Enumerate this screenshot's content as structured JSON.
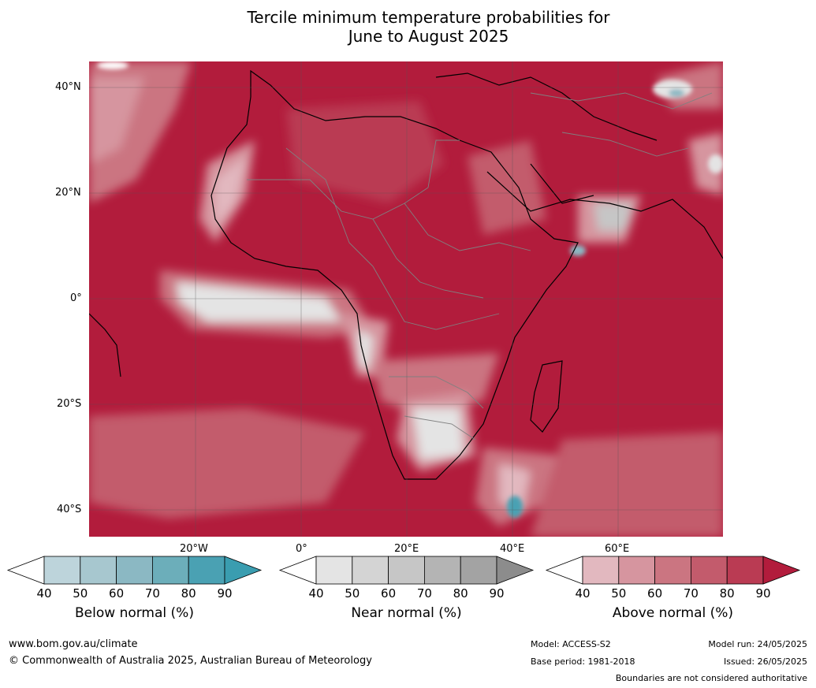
{
  "title_line1": "Tercile minimum temperature probabilities for",
  "title_line2": "June to August 2025",
  "lat_labels": [
    "40°N",
    "20°N",
    "0°",
    "20°S",
    "40°S"
  ],
  "lon_labels": [
    "20°W",
    "0°",
    "20°E",
    "40°E",
    "60°E"
  ],
  "legends": [
    {
      "title": "Below normal (%)",
      "ticks": [
        "40",
        "50",
        "60",
        "70",
        "80",
        "90"
      ],
      "colors": [
        "#ffffff",
        "#bdd4db",
        "#a7c7cf",
        "#8bb8c3",
        "#6caeba",
        "#4aa1b3",
        "#3a9db0"
      ]
    },
    {
      "title": "Near normal (%)",
      "ticks": [
        "40",
        "50",
        "60",
        "70",
        "80",
        "90"
      ],
      "colors": [
        "#ffffff",
        "#e4e4e4",
        "#d4d4d4",
        "#c6c6c6",
        "#b4b4b4",
        "#a3a3a3",
        "#8c8c8c"
      ]
    },
    {
      "title": "Above normal (%)",
      "ticks": [
        "40",
        "50",
        "60",
        "70",
        "80",
        "90"
      ],
      "colors": [
        "#ffffff",
        "#e2b8bf",
        "#d6959f",
        "#cb7581",
        "#c35b6c",
        "#ba3b53",
        "#b21c3c"
      ]
    }
  ],
  "footer": {
    "url": "www.bom.gov.au/climate",
    "copyright": "© Commonwealth of Australia 2025, Australian Bureau of Meteorology",
    "model": "Model: ACCESS-S2",
    "base_period": "Base period: 1981-2018",
    "model_run": "Model run: 24/05/2025",
    "issued": "Issued: 26/05/2025",
    "disclaimer": "Boundaries are not considered authoritative"
  }
}
